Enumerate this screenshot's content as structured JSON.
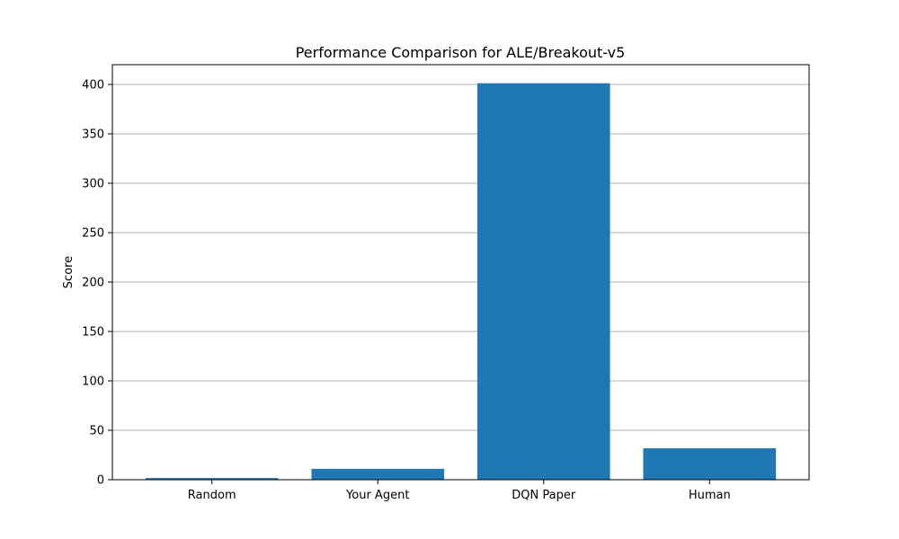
{
  "chart_data": {
    "type": "bar",
    "title": "Performance Comparison for ALE/Breakout-v5",
    "xlabel": "",
    "ylabel": "Score",
    "categories": [
      "Random",
      "Your Agent",
      "DQN Paper",
      "Human"
    ],
    "values": [
      1.7,
      11.0,
      401.2,
      31.8
    ],
    "ylim": [
      0,
      420
    ],
    "yticks": [
      0,
      50,
      100,
      150,
      200,
      250,
      300,
      350,
      400
    ],
    "grid": "y",
    "bar_color": "#1f77b4",
    "grid_color": "#b0b0b0"
  }
}
